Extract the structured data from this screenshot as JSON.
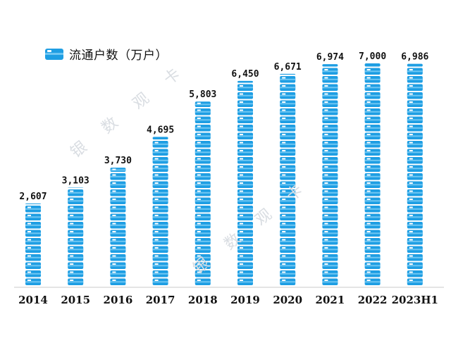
{
  "legend": {
    "label": "流通户数（万户）"
  },
  "watermark": {
    "text": "银数观卡"
  },
  "colors": {
    "bar": "#1e9ee3",
    "bar_light": "#6ec6f2",
    "stripe": "#ffffff",
    "axis": "#c8c8c8",
    "text": "#111111"
  },
  "chart_data": {
    "type": "bar",
    "categories": [
      "2014",
      "2015",
      "2016",
      "2017",
      "2018",
      "2019",
      "2020",
      "2021",
      "2022",
      "2023H1"
    ],
    "series": [
      {
        "name": "流通户数（万户）",
        "values": [
          2607,
          3103,
          3730,
          4695,
          5803,
          6450,
          6671,
          6974,
          7000,
          6986
        ]
      }
    ],
    "value_labels": [
      "2,607",
      "3,103",
      "3,730",
      "4,695",
      "5,803",
      "6,450",
      "6,671",
      "6,974",
      "7,000",
      "6,986"
    ],
    "ylim": [
      0,
      7000
    ],
    "grid": false,
    "legend_position": "top-left",
    "xlabel": "",
    "ylabel": ""
  }
}
